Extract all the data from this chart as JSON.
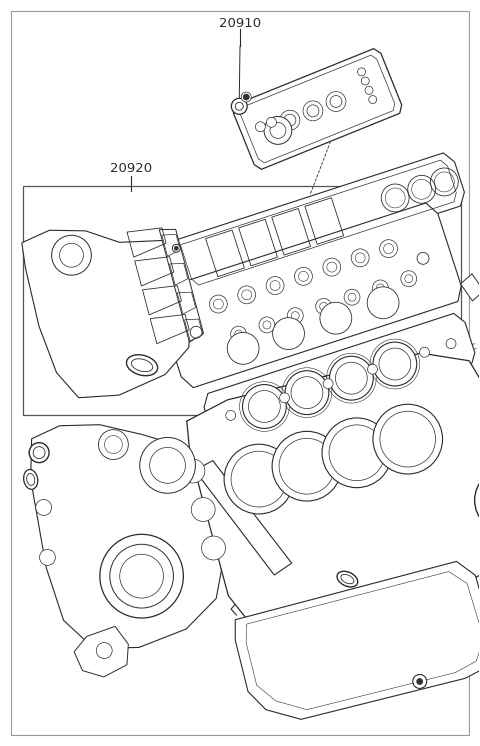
{
  "background_color": "#ffffff",
  "line_color": "#2a2a2a",
  "label_20910": "20910",
  "label_20920": "20920",
  "label_fontsize": 9.5,
  "fig_width": 4.8,
  "fig_height": 7.46,
  "dpi": 100,
  "border_color": "#888888",
  "part_line_color": "#333333",
  "part_lw": 0.8
}
